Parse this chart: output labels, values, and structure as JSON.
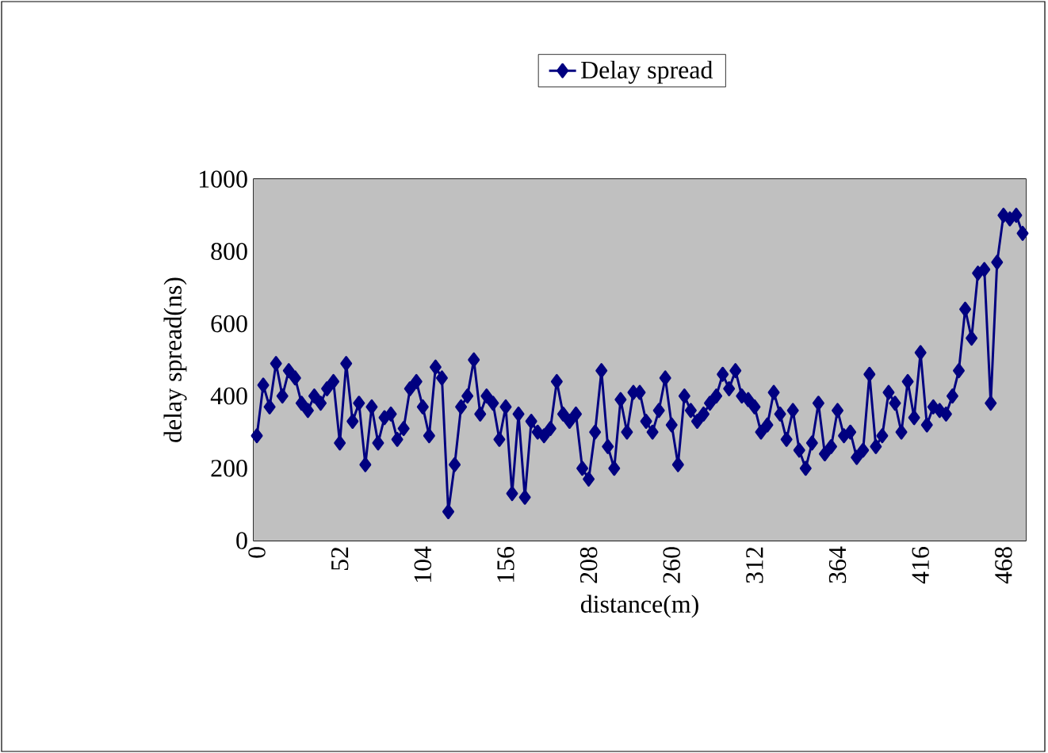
{
  "chart_data": {
    "type": "line",
    "xlabel": "distance(m)",
    "ylabel": "delay spread(ns)",
    "categories": [
      "0",
      null,
      null,
      null,
      null,
      null,
      null,
      null,
      null,
      null,
      null,
      null,
      null,
      "52",
      null,
      null,
      null,
      null,
      null,
      null,
      null,
      null,
      null,
      null,
      null,
      null,
      "104",
      null,
      null,
      null,
      null,
      null,
      null,
      null,
      null,
      null,
      null,
      null,
      null,
      "156",
      null,
      null,
      null,
      null,
      null,
      null,
      null,
      null,
      null,
      null,
      null,
      null,
      "208",
      null,
      null,
      null,
      null,
      null,
      null,
      null,
      null,
      null,
      null,
      null,
      null,
      "260",
      null,
      null,
      null,
      null,
      null,
      null,
      null,
      null,
      null,
      null,
      null,
      null,
      "312",
      null,
      null,
      null,
      null,
      null,
      null,
      null,
      null,
      null,
      null,
      null,
      null,
      "364",
      null,
      null,
      null,
      null,
      null,
      null,
      null,
      null,
      null,
      null,
      null,
      null,
      "416",
      null,
      null,
      null,
      null,
      null,
      null,
      null,
      null,
      null,
      null,
      null,
      null,
      "468",
      null,
      null,
      null
    ],
    "series": [
      {
        "name": "Delay spread",
        "color": "#000080",
        "values": [
          290,
          430,
          370,
          490,
          400,
          470,
          450,
          380,
          360,
          400,
          380,
          420,
          440,
          270,
          490,
          330,
          380,
          210,
          370,
          270,
          340,
          350,
          280,
          310,
          420,
          440,
          370,
          290,
          480,
          450,
          80,
          210,
          370,
          400,
          500,
          350,
          400,
          380,
          280,
          370,
          130,
          350,
          120,
          330,
          300,
          290,
          310,
          440,
          350,
          330,
          350,
          200,
          170,
          300,
          470,
          260,
          200,
          390,
          300,
          410,
          410,
          330,
          300,
          360,
          450,
          320,
          210,
          400,
          360,
          330,
          350,
          380,
          400,
          460,
          420,
          470,
          400,
          390,
          370,
          300,
          320,
          410,
          350,
          280,
          360,
          250,
          200,
          270,
          380,
          240,
          260,
          360,
          290,
          300,
          230,
          250,
          460,
          260,
          290,
          410,
          380,
          300,
          440,
          340,
          520,
          320,
          370,
          360,
          350,
          400,
          470,
          640,
          560,
          740,
          750,
          380,
          770,
          900,
          890,
          900,
          850
        ]
      }
    ],
    "ylim": [
      0,
      1000
    ],
    "yticks": [
      0,
      200,
      400,
      600,
      800,
      1000
    ],
    "grid": "y",
    "legend": "top",
    "marker": "diamond",
    "line_style": "solid"
  }
}
